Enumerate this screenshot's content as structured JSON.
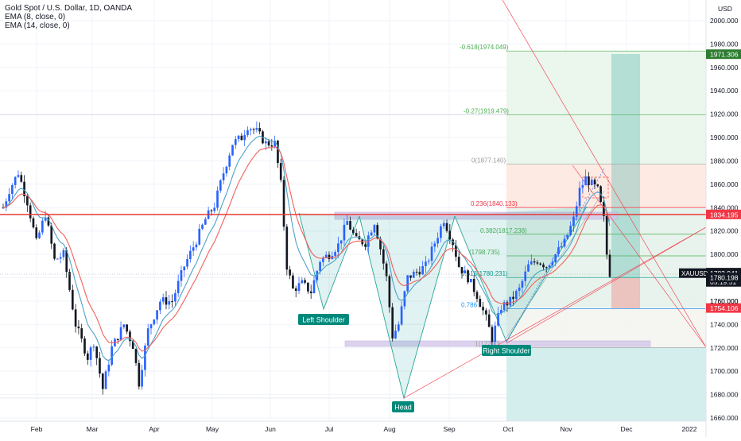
{
  "header": {
    "symbol_line": "Gold Spot / U.S. Dollar, 1D, OANDA",
    "ema8": "EMA (8, close, 0)",
    "ema14": "EMA (14, close, 0)"
  },
  "chart_data": {
    "type": "candlestick",
    "symbol": "XAUUSD",
    "currency_label": "USD",
    "x_ticks": [
      "Feb",
      "Mar",
      "Apr",
      "May",
      "Jun",
      "Jul",
      "Aug",
      "Sep",
      "Oct",
      "Nov",
      "Dec",
      "2022"
    ],
    "y_range": [
      1655,
      2015
    ],
    "y_ticks": [
      1660,
      1680,
      1700,
      1720,
      1740,
      1760,
      1780,
      1800,
      1820,
      1840,
      1860,
      1880,
      1900,
      1920,
      1940,
      1960,
      1980,
      2000
    ],
    "y_tick_labels": [
      "1660.000",
      "1680.000",
      "1700.000",
      "1720.000",
      "1740.000",
      "1760.000",
      "1780.000",
      "1800.000",
      "1820.000",
      "1840.000",
      "1860.000",
      "1880.000",
      "1900.000",
      "1920.000",
      "1940.000",
      "1960.000",
      "1980.000",
      "2000.000"
    ],
    "price_path": [
      {
        "t": 0,
        "p": 1840
      },
      {
        "t": 2,
        "p": 1855
      },
      {
        "t": 5,
        "p": 1870
      },
      {
        "t": 8,
        "p": 1845
      },
      {
        "t": 11,
        "p": 1810
      },
      {
        "t": 14,
        "p": 1835
      },
      {
        "t": 17,
        "p": 1795
      },
      {
        "t": 20,
        "p": 1800
      },
      {
        "t": 24,
        "p": 1740
      },
      {
        "t": 28,
        "p": 1712
      },
      {
        "t": 30,
        "p": 1725
      },
      {
        "t": 33,
        "p": 1685
      },
      {
        "t": 36,
        "p": 1720
      },
      {
        "t": 40,
        "p": 1740
      },
      {
        "t": 43,
        "p": 1722
      },
      {
        "t": 45,
        "p": 1690
      },
      {
        "t": 48,
        "p": 1735
      },
      {
        "t": 52,
        "p": 1760
      },
      {
        "t": 56,
        "p": 1760
      },
      {
        "t": 60,
        "p": 1790
      },
      {
        "t": 64,
        "p": 1812
      },
      {
        "t": 67,
        "p": 1830
      },
      {
        "t": 70,
        "p": 1842
      },
      {
        "t": 73,
        "p": 1870
      },
      {
        "t": 76,
        "p": 1895
      },
      {
        "t": 79,
        "p": 1900
      },
      {
        "t": 81,
        "p": 1910
      },
      {
        "t": 84,
        "p": 1905
      },
      {
        "t": 87,
        "p": 1895
      },
      {
        "t": 90,
        "p": 1895
      },
      {
        "t": 92,
        "p": 1860
      },
      {
        "t": 94,
        "p": 1790
      },
      {
        "t": 96,
        "p": 1770
      },
      {
        "t": 99,
        "p": 1775
      },
      {
        "t": 102,
        "p": 1768
      },
      {
        "t": 105,
        "p": 1795
      },
      {
        "t": 108,
        "p": 1800
      },
      {
        "t": 111,
        "p": 1808
      },
      {
        "t": 114,
        "p": 1828
      },
      {
        "t": 117,
        "p": 1812
      },
      {
        "t": 120,
        "p": 1810
      },
      {
        "t": 123,
        "p": 1828
      },
      {
        "t": 125,
        "p": 1805
      },
      {
        "t": 127,
        "p": 1780
      },
      {
        "t": 129,
        "p": 1730
      },
      {
        "t": 131,
        "p": 1740
      },
      {
        "t": 134,
        "p": 1780
      },
      {
        "t": 137,
        "p": 1785
      },
      {
        "t": 140,
        "p": 1790
      },
      {
        "t": 143,
        "p": 1810
      },
      {
        "t": 146,
        "p": 1830
      },
      {
        "t": 149,
        "p": 1810
      },
      {
        "t": 151,
        "p": 1790
      },
      {
        "t": 154,
        "p": 1780
      },
      {
        "t": 157,
        "p": 1765
      },
      {
        "t": 160,
        "p": 1745
      },
      {
        "t": 162,
        "p": 1728
      },
      {
        "t": 165,
        "p": 1755
      },
      {
        "t": 168,
        "p": 1760
      },
      {
        "t": 171,
        "p": 1770
      },
      {
        "t": 174,
        "p": 1790
      },
      {
        "t": 177,
        "p": 1795
      },
      {
        "t": 180,
        "p": 1790
      },
      {
        "t": 183,
        "p": 1800
      },
      {
        "t": 186,
        "p": 1810
      },
      {
        "t": 189,
        "p": 1830
      },
      {
        "t": 191,
        "p": 1855
      },
      {
        "t": 193,
        "p": 1865
      },
      {
        "t": 195,
        "p": 1860
      },
      {
        "t": 197,
        "p": 1855
      },
      {
        "t": 199,
        "p": 1830
      },
      {
        "t": 200,
        "p": 1800
      },
      {
        "t": 201,
        "p": 1784
      }
    ],
    "fibonacci_levels": [
      {
        "ratio": "-0.618",
        "price": 1974.049,
        "label": "-0.618(1974.049)"
      },
      {
        "ratio": "-0.27",
        "price": 1919.479,
        "label": "-0.27(1919.479)"
      },
      {
        "ratio": "0",
        "price": 1877.14,
        "label": "0(1877.140)"
      },
      {
        "ratio": "0.236",
        "price": 1840.133,
        "label": "0.236(1840.133)"
      },
      {
        "ratio": "0.382",
        "price": 1817.238,
        "label": "0.382(1817.238)"
      },
      {
        "ratio": "0.5",
        "price": 1798.735,
        "label": "(1798.735)"
      },
      {
        "ratio": "0.618",
        "price": 1780.231,
        "label": "0.618(1780.231)"
      },
      {
        "ratio": "0.786",
        "price": 1753.4,
        "label": "0.786"
      },
      {
        "ratio": "1",
        "price": 1720.3,
        "label": "1(1720.3"
      }
    ],
    "pattern_labels": [
      "Left Shoulder",
      "Head",
      "Right Shoulder"
    ],
    "price_badges": [
      {
        "label": "1971.306",
        "price": 1971.306,
        "color": "#2e7d32"
      },
      {
        "label": "1834.195",
        "price": 1834.195,
        "color": "#f23645"
      },
      {
        "label": "1784.351",
        "price": 1784.351,
        "color": "#131722"
      },
      {
        "label": "1783.941",
        "price": 1783.941,
        "color": "#131722",
        "symbol": "XAUUSD",
        "countdown": "05:19:51"
      },
      {
        "label": "1780.198",
        "price": 1780.198,
        "color": "#131722"
      },
      {
        "label": "1754.106",
        "price": 1754.106,
        "color": "#f23645"
      }
    ],
    "partial_tick": "1760.000",
    "colors": {
      "bull": "#2962ff",
      "bear": "#131722",
      "ema8": "#4ba3c7",
      "ema14": "#f0615b",
      "resistance": "#e53935",
      "target_zone": "#26a69a",
      "stop_zone": "#ef9a9a"
    }
  }
}
